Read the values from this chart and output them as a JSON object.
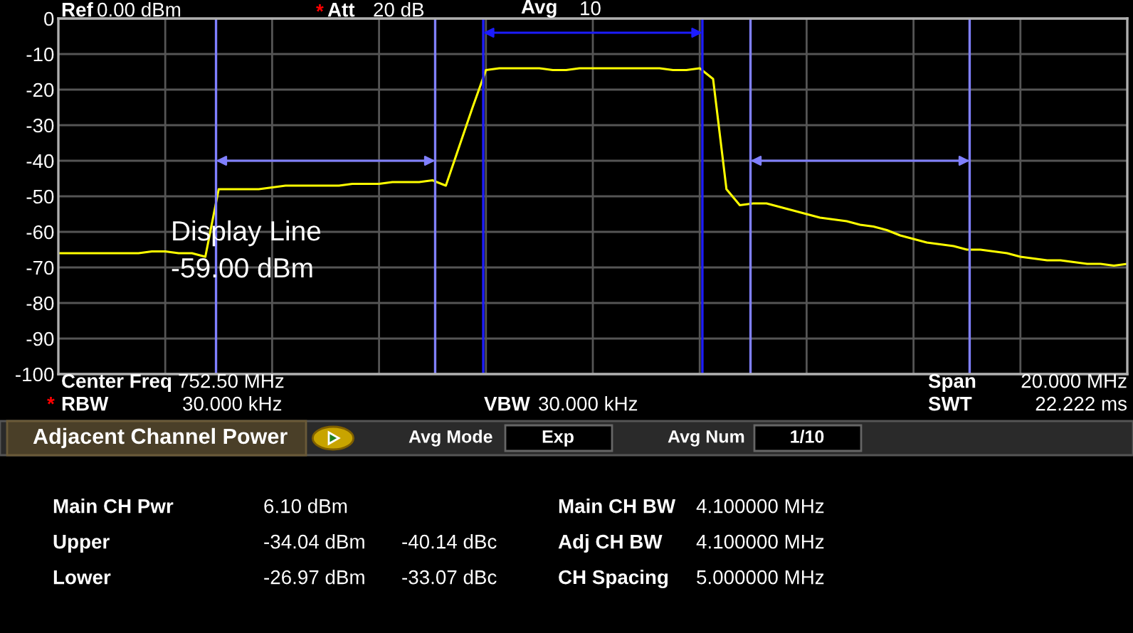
{
  "chart_data": {
    "type": "line",
    "categories": [
      null,
      null,
      null,
      null,
      null,
      null,
      null,
      null,
      null,
      null,
      null,
      null,
      null,
      null,
      null,
      null,
      null,
      null,
      null,
      null,
      null,
      null,
      null,
      null,
      null,
      null,
      null,
      null,
      null,
      null,
      null,
      null,
      null,
      null,
      null,
      null,
      null,
      null,
      null,
      null,
      null,
      null,
      null,
      null,
      null,
      null,
      null,
      null,
      null,
      null,
      null,
      null,
      null,
      null,
      null,
      null,
      null,
      null,
      null,
      null,
      null,
      null,
      null,
      null,
      null,
      null,
      null,
      null,
      null,
      null,
      null,
      null,
      null,
      null,
      null,
      null,
      null,
      null,
      null,
      null,
      null
    ],
    "series": [
      {
        "color": "#ffff00",
        "values": [
          -66,
          -66,
          -66,
          -66,
          -66,
          -66,
          -66,
          -65.5,
          -65.5,
          -66,
          -66,
          -67,
          -48,
          -48,
          -48,
          -48,
          -47.5,
          -47,
          -47,
          -47,
          -47,
          -47,
          -46.5,
          -46.5,
          -46.5,
          -46,
          -46,
          -46,
          -45.5,
          -47,
          -36,
          -25,
          -14.5,
          -14,
          -14,
          -14,
          -14,
          -14.5,
          -14.5,
          -14,
          -14,
          -14,
          -14,
          -14,
          -14,
          -14,
          -14.5,
          -14.5,
          -14,
          -17,
          -48,
          -52.5,
          -52,
          -52,
          -53,
          -54,
          -55,
          -56,
          -56.5,
          -57,
          -58,
          -58.5,
          -59.5,
          -61,
          -62,
          -63,
          -63.5,
          -64,
          -65,
          -65,
          -65.5,
          -66,
          -67,
          -67.5,
          -68,
          -68,
          -68.5,
          -69,
          -69,
          -69.5,
          -69
        ]
      }
    ],
    "ylim": [
      -100,
      0
    ],
    "yticks": [
      0,
      -10,
      -20,
      -30,
      -40,
      -50,
      -60,
      -70,
      -80,
      -90,
      -100
    ],
    "grid": true,
    "line_style": "solid",
    "annotations": [
      "Ref",
      "0.00 dBm",
      "*",
      "Att",
      "20 dB",
      "Avg",
      "10",
      "Display Line",
      "-59.00 dBm",
      "Center Freq",
      "752.50 MHz",
      "*",
      "RBW",
      "30.000 kHz",
      "VBW",
      "30.000 kHz",
      "Span",
      "20.000 MHz",
      "SWT",
      "22.222 ms",
      "Adjacent Channel Power",
      "Avg Mode",
      "Exp",
      "Avg Num",
      "1/10",
      "Main CH Pwr",
      "6.10 dBm",
      "Upper",
      "-34.04 dBm",
      "-40.14 dBc",
      "Lower",
      "-26.97 dBm",
      "-33.07 dBc",
      "Main CH BW",
      "4.100000 MHz",
      "Adj CH BW",
      "4.100000 MHz",
      "CH Spacing",
      "5.000000 MHz"
    ]
  }
}
